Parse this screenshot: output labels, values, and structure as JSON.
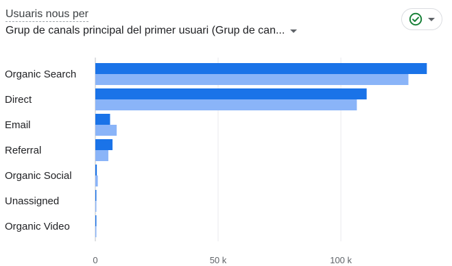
{
  "header": {
    "subtitle": "Usuaris nous per",
    "dimension": "Grup de canals principal del primer usuari (Grup de can..."
  },
  "status": {
    "icon": "check-circle-icon",
    "dropdown_icon": "caret-down-icon"
  },
  "colors": {
    "series_primary": "#1a73e8",
    "series_secondary": "#8ab4f8",
    "grid": "#e8eaed"
  },
  "chart_data": {
    "type": "bar",
    "orientation": "horizontal",
    "categories": [
      "Organic Search",
      "Direct",
      "Email",
      "Referral",
      "Organic Social",
      "Unassigned",
      "Organic Video"
    ],
    "series": [
      {
        "values": [
          135000,
          110500,
          6000,
          7000,
          600,
          300,
          300
        ]
      },
      {
        "values": [
          127500,
          106500,
          8700,
          5300,
          1000,
          200,
          200
        ]
      }
    ],
    "xlim": [
      0,
      140000
    ],
    "x_ticks": [
      0,
      50000,
      100000
    ],
    "x_tick_labels": [
      "0",
      "50 k",
      "100 k"
    ],
    "grid": true
  }
}
